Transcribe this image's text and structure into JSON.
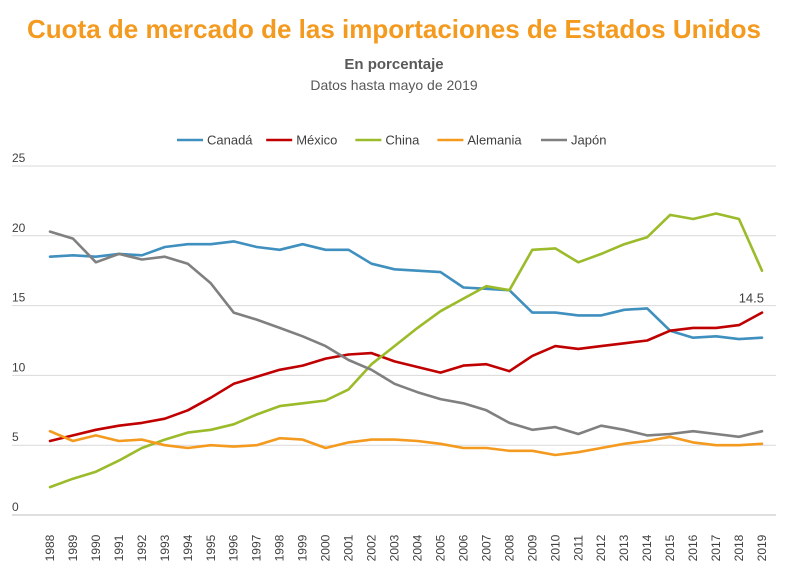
{
  "chart_data": {
    "type": "line",
    "title": "Cuota de mercado de las importaciones de Estados Unidos",
    "subtitle": "En porcentaje",
    "note": "Datos hasta mayo de 2019",
    "xlabel": "",
    "ylabel": "",
    "ylim": [
      0,
      25
    ],
    "yticks": [
      "0",
      "5",
      "10",
      "15",
      "20",
      "25"
    ],
    "grid": true,
    "legend_position": "top",
    "categories": [
      "1988",
      "1989",
      "1990",
      "1991",
      "1992",
      "1993",
      "1994",
      "1995",
      "1996",
      "1997",
      "1998",
      "1999",
      "2000",
      "2001",
      "2002",
      "2003",
      "2004",
      "2005",
      "2006",
      "2007",
      "2008",
      "2009",
      "2010",
      "2011",
      "2012",
      "2013",
      "2014",
      "2015",
      "2016",
      "2017",
      "2018",
      "2019"
    ],
    "series": [
      {
        "name": "Canadá",
        "color": "#3f8fbf",
        "values": [
          18.5,
          18.6,
          18.5,
          18.7,
          18.6,
          19.2,
          19.4,
          19.4,
          19.6,
          19.2,
          19.0,
          19.4,
          19.0,
          19.0,
          18.0,
          17.6,
          17.5,
          17.4,
          16.3,
          16.2,
          16.1,
          14.5,
          14.5,
          14.3,
          14.3,
          14.7,
          14.8,
          13.2,
          12.7,
          12.8,
          12.6,
          12.7
        ]
      },
      {
        "name": "México",
        "color": "#c00000",
        "values": [
          5.3,
          5.7,
          6.1,
          6.4,
          6.6,
          6.9,
          7.5,
          8.4,
          9.4,
          9.9,
          10.4,
          10.7,
          11.2,
          11.5,
          11.6,
          11.0,
          10.6,
          10.2,
          10.7,
          10.8,
          10.3,
          11.4,
          12.1,
          11.9,
          12.1,
          12.3,
          12.5,
          13.2,
          13.4,
          13.4,
          13.6,
          14.5
        ]
      },
      {
        "name": "China",
        "color": "#9bbb2a",
        "values": [
          2.0,
          2.6,
          3.1,
          3.9,
          4.8,
          5.4,
          5.9,
          6.1,
          6.5,
          7.2,
          7.8,
          8.0,
          8.2,
          9.0,
          10.8,
          12.1,
          13.4,
          14.6,
          15.5,
          16.4,
          16.1,
          19.0,
          19.1,
          18.1,
          18.7,
          19.4,
          19.9,
          21.5,
          21.2,
          21.6,
          21.2,
          17.5
        ]
      },
      {
        "name": "Alemania",
        "color": "#f39a1f",
        "values": [
          6.0,
          5.3,
          5.7,
          5.3,
          5.4,
          5.0,
          4.8,
          5.0,
          4.9,
          5.0,
          5.5,
          5.4,
          4.8,
          5.2,
          5.4,
          5.4,
          5.3,
          5.1,
          4.8,
          4.8,
          4.6,
          4.6,
          4.3,
          4.5,
          4.8,
          5.1,
          5.3,
          5.6,
          5.2,
          5.0,
          5.0,
          5.1
        ]
      },
      {
        "name": "Japón",
        "color": "#808080",
        "values": [
          20.3,
          19.8,
          18.1,
          18.7,
          18.3,
          18.5,
          18.0,
          16.6,
          14.5,
          14.0,
          13.4,
          12.8,
          12.1,
          11.1,
          10.4,
          9.4,
          8.8,
          8.3,
          8.0,
          7.5,
          6.6,
          6.1,
          6.3,
          5.8,
          6.4,
          6.1,
          5.7,
          5.8,
          6.0,
          5.8,
          5.6,
          6.0
        ]
      }
    ],
    "annotations": [
      {
        "series": "México",
        "category": "2019",
        "text": "14.5"
      }
    ]
  }
}
